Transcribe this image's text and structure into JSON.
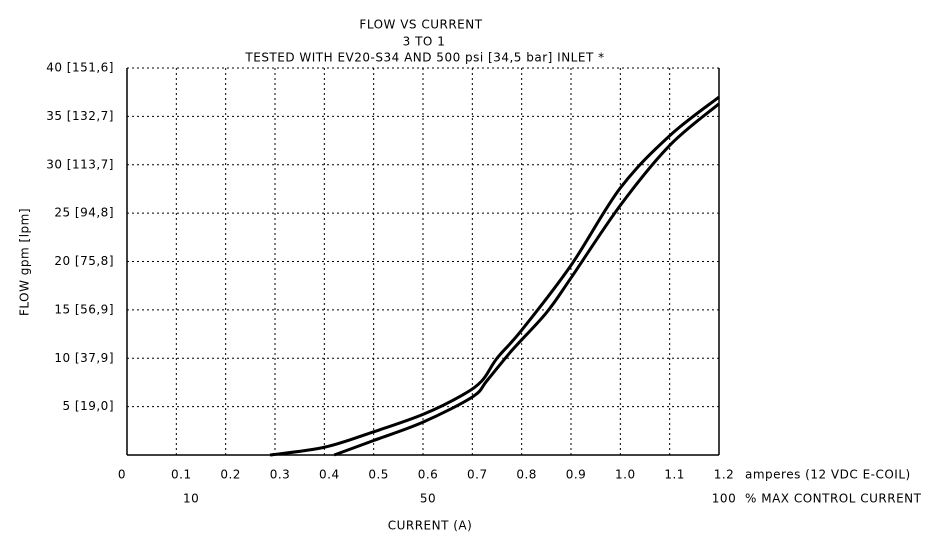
{
  "chart_data": {
    "type": "line",
    "title": "FLOW VS CURRENT",
    "subtitle": "3 TO 1",
    "note": "TESTED WITH EV20-S34 AND 500 psi [34,5 bar] INLET *",
    "ylabel": "FLOW gpm [lpm]",
    "xlabel": "CURRENT (A)",
    "xunit": "amperes (12 VDC E-COIL)",
    "x2label": "% MAX CONTROL CURRENT",
    "xlim": [
      0,
      1.2
    ],
    "xticks": [
      0,
      0.1,
      0.2,
      0.3,
      0.4,
      0.5,
      0.6,
      0.7,
      0.8,
      0.9,
      {
        "value": 1,
        "label": "1.0"
      },
      1.1,
      1.2
    ],
    "x2lim": [
      0,
      100
    ],
    "x2ticks": [
      10,
      50,
      100
    ],
    "ylim": [
      0,
      40
    ],
    "yticks": [
      {
        "value": 5,
        "label": "5 [19,0]"
      },
      {
        "value": 10,
        "label": "10 [37,9]"
      },
      {
        "value": 15,
        "label": "15 [56,9]"
      },
      {
        "value": 20,
        "label": "20 [75,8]"
      },
      {
        "value": 25,
        "label": "25 [94,8]"
      },
      {
        "value": 30,
        "label": "30 [113,7]"
      },
      {
        "value": 35,
        "label": "35 [132,7]"
      },
      {
        "value": 40,
        "label": "40 [151,6]"
      }
    ],
    "grid": true,
    "series": [
      {
        "color": "#000000",
        "x": [
          0.29,
          0.4,
          0.5,
          0.6,
          0.68,
          0.72,
          0.75,
          0.8,
          0.9,
          1.0,
          1.1,
          1.2
        ],
        "values": [
          0,
          0.8,
          2.4,
          4.2,
          6.2,
          7.7,
          10,
          12.9,
          19.6,
          27.6,
          33,
          37
        ]
      },
      {
        "color": "#000000",
        "x": [
          0.42,
          0.5,
          0.6,
          0.7,
          0.73,
          0.78,
          0.85,
          0.9,
          1.0,
          1.1,
          1.2
        ],
        "values": [
          0,
          1.5,
          3.4,
          6,
          7.7,
          10.8,
          14.7,
          18.3,
          25.8,
          32,
          36.3
        ]
      }
    ]
  }
}
